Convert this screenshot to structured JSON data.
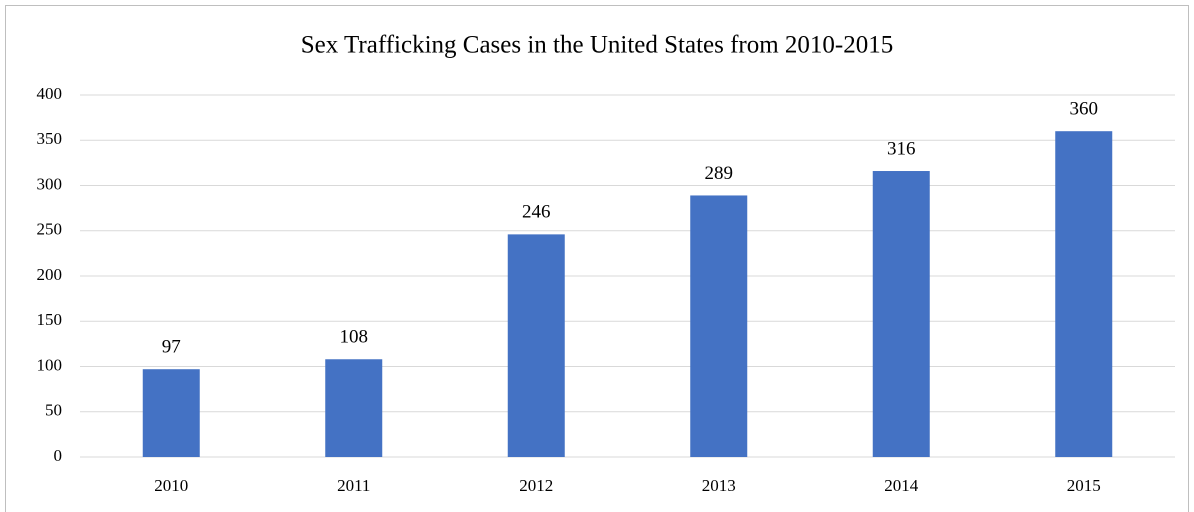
{
  "chart_data": {
    "type": "bar",
    "title": "Sex Trafficking Cases in the United States from 2010-2015",
    "categories": [
      "2010",
      "2011",
      "2012",
      "2013",
      "2014",
      "2015"
    ],
    "values": [
      97,
      108,
      246,
      289,
      316,
      360
    ],
    "color": "#4472c4",
    "ylim": [
      0,
      400
    ],
    "yticks": [
      0,
      50,
      100,
      150,
      200,
      250,
      300,
      350,
      400
    ],
    "grid": true
  }
}
